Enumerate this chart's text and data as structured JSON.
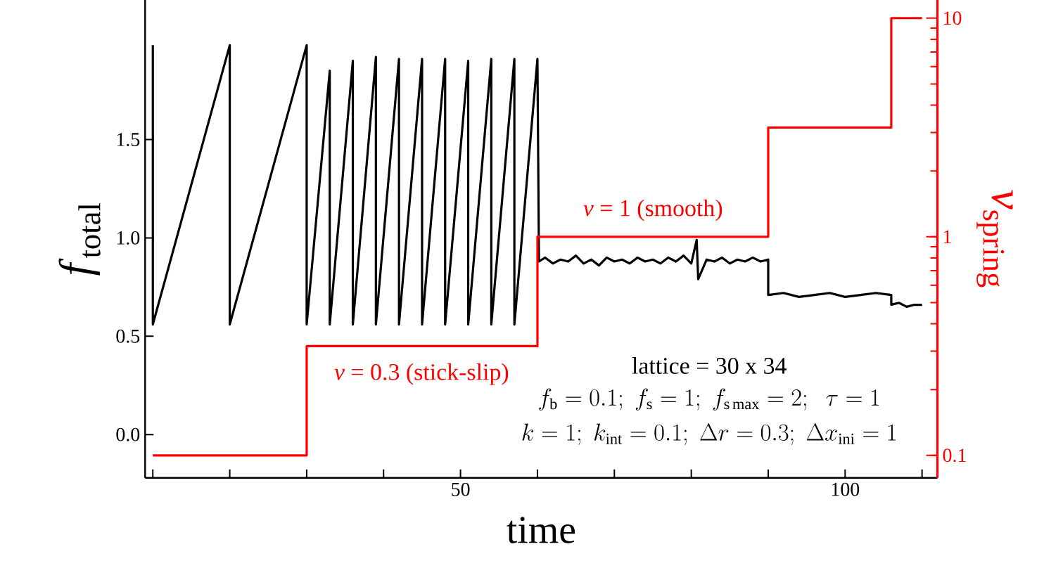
{
  "chart_data": {
    "type": "line",
    "xlabel": "time",
    "ylabel": "*f*$_{total}$",
    "y2label": "*v*$_{spring}$",
    "xlim": [
      9,
      112
    ],
    "ylim": [
      -0.22,
      2.21
    ],
    "y2lim": [
      0.079,
      12.1
    ],
    "log": "y2",
    "xticks": [
      {
        "value": 10,
        "label": null
      },
      {
        "value": 20,
        "label": null
      },
      {
        "value": 30,
        "label": null
      },
      {
        "value": 40,
        "label": null
      },
      50,
      {
        "value": 60,
        "label": null
      },
      {
        "value": 70,
        "label": null
      },
      {
        "value": 80,
        "label": null
      },
      {
        "value": 90,
        "label": null
      },
      100,
      {
        "value": 110,
        "label": null
      }
    ],
    "yticks": [
      {
        "value": 0,
        "label": "0.0"
      },
      0.5,
      {
        "value": 1,
        "label": "1.0"
      },
      1.5
    ],
    "y2ticks": [
      0.1,
      1,
      10
    ],
    "series": [
      {
        "color": "#000000",
        "x": [
          10,
          10,
          20,
          20,
          30,
          30,
          33,
          33,
          36,
          36,
          39,
          39,
          42,
          42,
          45,
          45,
          48,
          48,
          51,
          51,
          54,
          54,
          57,
          57,
          60,
          60.2,
          61,
          62,
          63,
          64,
          65,
          66,
          67,
          68,
          69,
          70,
          71,
          72,
          73,
          74,
          75,
          76,
          77,
          78,
          79,
          80,
          80.7,
          80.9,
          82,
          83,
          84,
          85,
          86,
          87,
          88,
          89,
          90,
          90,
          92,
          94,
          96,
          98,
          100,
          102,
          104,
          106,
          106,
          107,
          108,
          109,
          110
        ],
        "values": [
          1.98,
          0.56,
          1.98,
          0.56,
          1.98,
          0.56,
          1.85,
          0.56,
          1.9,
          0.56,
          1.92,
          0.56,
          1.91,
          0.56,
          1.91,
          0.56,
          1.91,
          0.56,
          1.9,
          0.56,
          1.91,
          0.56,
          1.91,
          0.56,
          1.91,
          0.88,
          0.9,
          0.87,
          0.89,
          0.88,
          0.91,
          0.87,
          0.89,
          0.86,
          0.9,
          0.88,
          0.89,
          0.87,
          0.9,
          0.88,
          0.89,
          0.87,
          0.9,
          0.88,
          0.91,
          0.87,
          0.99,
          0.79,
          0.89,
          0.88,
          0.9,
          0.87,
          0.89,
          0.88,
          0.9,
          0.88,
          0.89,
          0.71,
          0.72,
          0.7,
          0.71,
          0.72,
          0.7,
          0.71,
          0.72,
          0.71,
          0.66,
          0.67,
          0.65,
          0.66,
          0.66
        ]
      },
      {
        "type": "step",
        "axis": "y2",
        "color": "#ff0000",
        "x": [
          10,
          30,
          60,
          90,
          106,
          110
        ],
        "values": [
          0.1,
          0.316,
          1,
          3.16,
          10,
          10
        ]
      }
    ],
    "annotations": [
      "*v* = 0.3 (stick-slip)",
      "*v* = 1 (smooth)",
      "lattice = 30 x 34",
      "f_{\\mathrm{b}} = 0.1;\\; f_{\\mathrm{s}} = 1;\\; f_{\\mathrm{s\\,max}} = 2;\\;\\; \\tau = 1",
      "k = 1;\\; k_{\\mathrm{int}} = 0.1;\\; \\Delta r = 0.3;\\; \\Delta x_{\\mathrm{ini}} = 1"
    ]
  }
}
